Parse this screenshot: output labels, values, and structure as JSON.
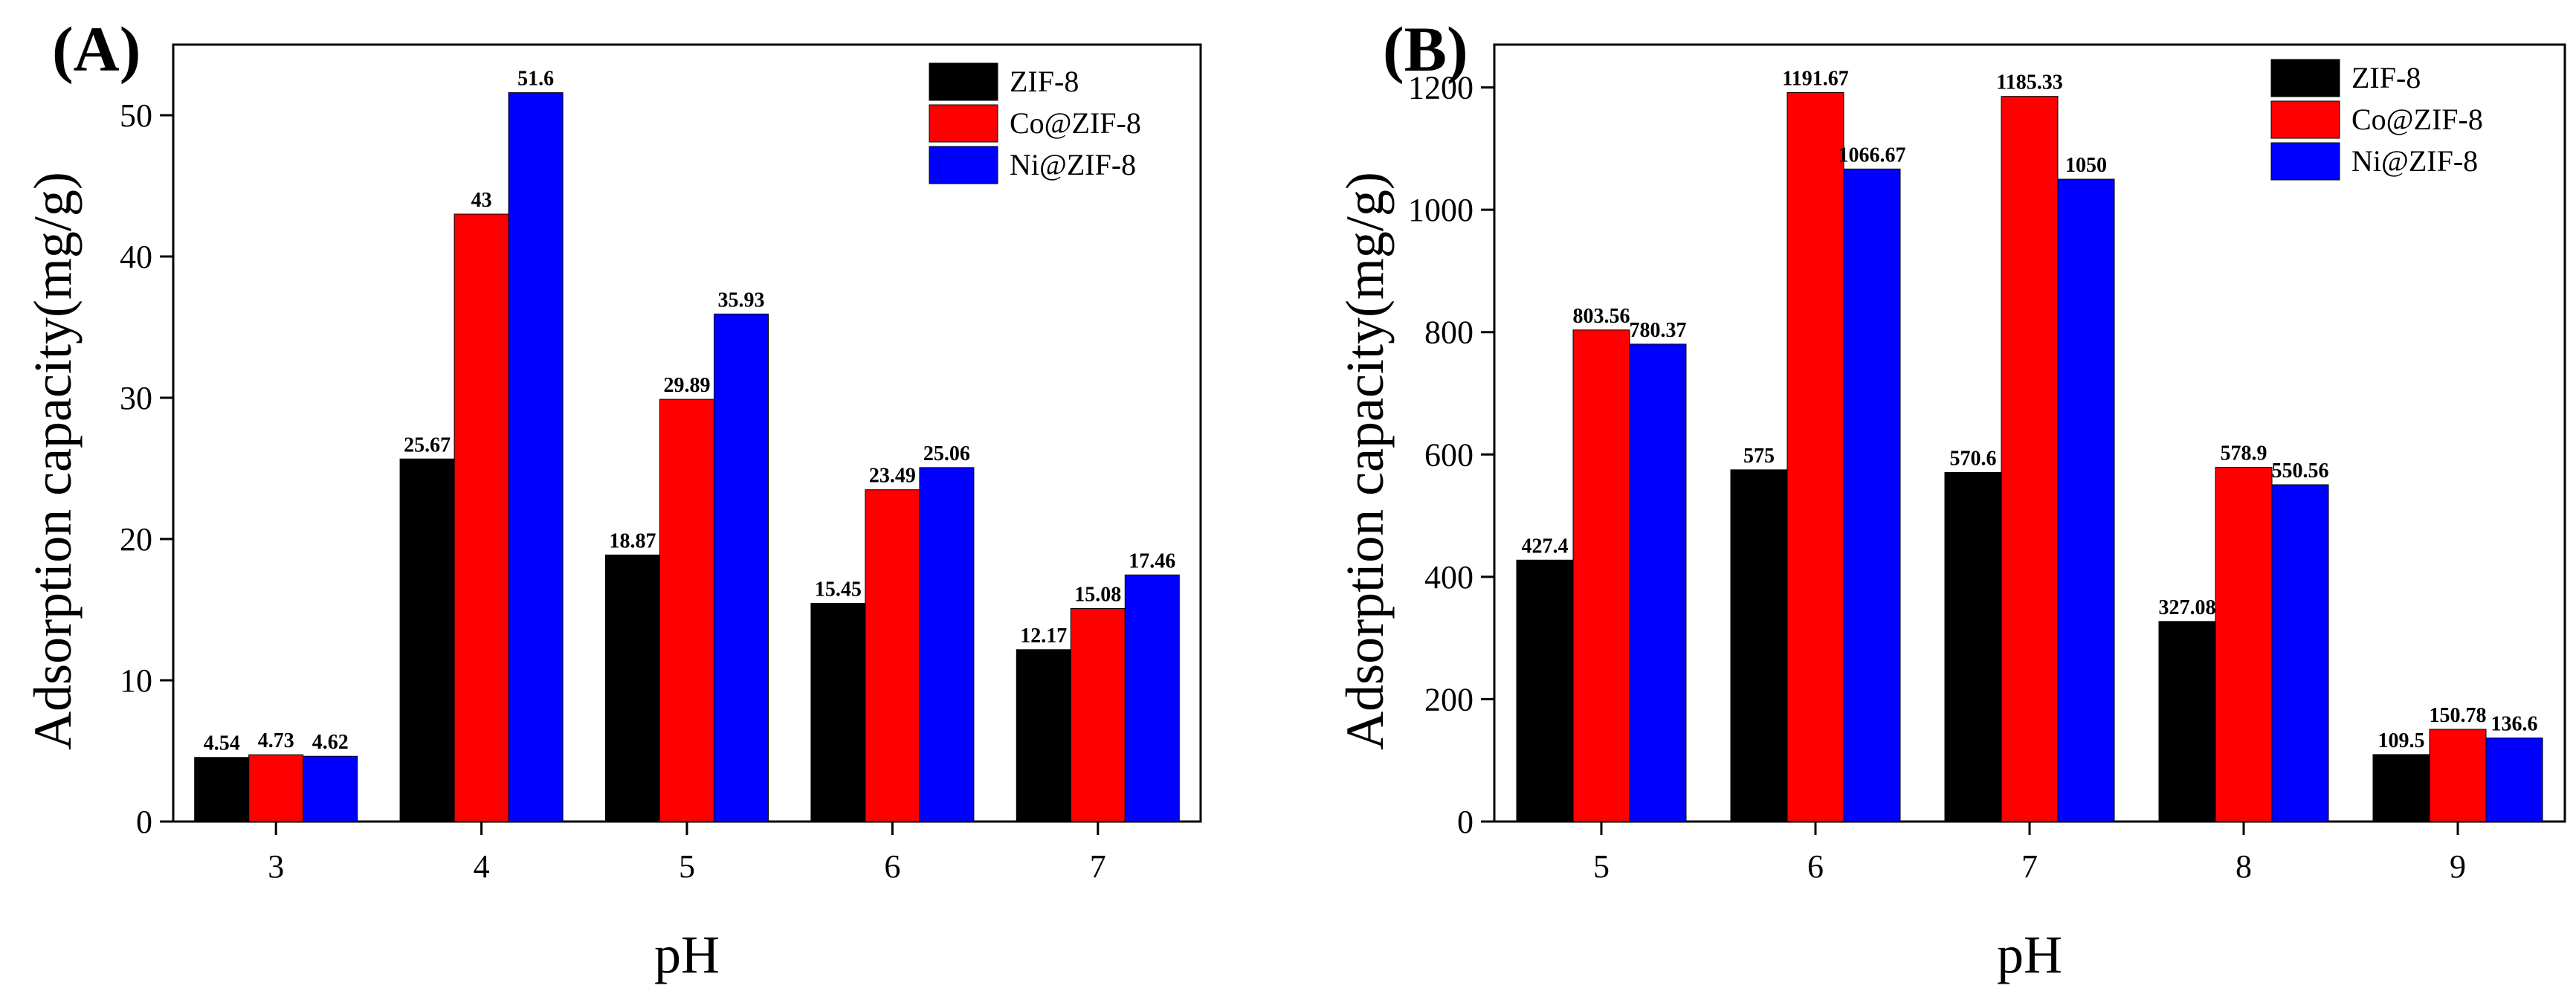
{
  "chart_data": [
    {
      "panel": "(A)",
      "type": "bar",
      "xlabel": "pH",
      "ylabel": "Adsorption capacity(mg/g)",
      "categories": [
        "3",
        "4",
        "5",
        "6",
        "7"
      ],
      "ylim": [
        0,
        55
      ],
      "yticks": [
        0,
        10,
        20,
        30,
        40,
        50
      ],
      "legend_position": "top-right",
      "series": [
        {
          "name": "ZIF-8",
          "color": "#000000",
          "values": [
            4.54,
            25.67,
            18.87,
            15.45,
            12.17
          ],
          "labels": [
            "4.54",
            "25.67",
            "18.87",
            "15.45",
            "12.17"
          ]
        },
        {
          "name": "Co@ZIF-8",
          "color": "#ff0000",
          "values": [
            4.73,
            43,
            29.89,
            23.49,
            15.08
          ],
          "labels": [
            "4.73",
            "43",
            "29.89",
            "23.49",
            "15.08"
          ]
        },
        {
          "name": "Ni@ZIF-8",
          "color": "#0000ff",
          "values": [
            4.62,
            51.6,
            35.93,
            25.06,
            17.46
          ],
          "labels": [
            "4.62",
            "51.6",
            "35.93",
            "25.06",
            "17.46"
          ]
        }
      ]
    },
    {
      "panel": "(B)",
      "type": "bar",
      "xlabel": "pH",
      "ylabel": "Adsorption capacity(mg/g)",
      "categories": [
        "5",
        "6",
        "7",
        "8",
        "9"
      ],
      "ylim": [
        0,
        1270
      ],
      "yticks": [
        0,
        200,
        400,
        600,
        800,
        1000,
        1200
      ],
      "legend_position": "top-right",
      "series": [
        {
          "name": "ZIF-8",
          "color": "#000000",
          "values": [
            427.4,
            575,
            570.6,
            327.08,
            109.5
          ],
          "labels": [
            "427.4",
            "575",
            "570.6",
            "327.08",
            "109.5"
          ]
        },
        {
          "name": "Co@ZIF-8",
          "color": "#ff0000",
          "values": [
            803.56,
            1191.67,
            1185.33,
            578.9,
            150.78
          ],
          "labels": [
            "803.56",
            "1191.67",
            "1185.33",
            "578.9",
            "150.78"
          ]
        },
        {
          "name": "Ni@ZIF-8",
          "color": "#0000ff",
          "values": [
            780.37,
            1066.67,
            1050,
            550.56,
            136.6
          ],
          "labels": [
            "780.37",
            "1066.67",
            "1050",
            "550.56",
            "136.6"
          ]
        }
      ]
    }
  ]
}
